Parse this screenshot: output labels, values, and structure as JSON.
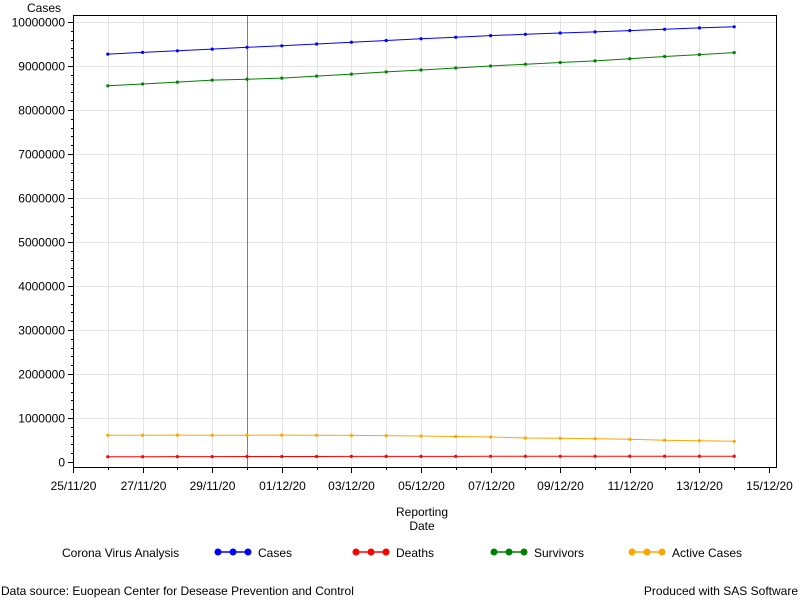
{
  "chart_data": {
    "type": "line",
    "x": [
      "26/11/20",
      "27/11/20",
      "28/11/20",
      "29/11/20",
      "30/11/20",
      "01/12/20",
      "02/12/20",
      "03/12/20",
      "04/12/20",
      "05/12/20",
      "06/12/20",
      "07/12/20",
      "08/12/20",
      "09/12/20",
      "10/12/20",
      "11/12/20",
      "12/12/20",
      "13/12/20",
      "14/12/20"
    ],
    "series": [
      {
        "name": "Cases",
        "color": "#0000ff",
        "values": [
          9270000,
          9310000,
          9345000,
          9385000,
          9425000,
          9460000,
          9500000,
          9540000,
          9580000,
          9620000,
          9655000,
          9690000,
          9720000,
          9750000,
          9775000,
          9805000,
          9835000,
          9865000,
          9890000
        ]
      },
      {
        "name": "Deaths",
        "color": "#ff0000",
        "values": [
          120000,
          121000,
          122000,
          123000,
          124000,
          125000,
          126000,
          127000,
          127000,
          128000,
          128000,
          129000,
          129000,
          130000,
          130000,
          131000,
          131000,
          132000,
          132000
        ]
      },
      {
        "name": "Survivors",
        "color": "#008000",
        "values": [
          8550000,
          8590000,
          8635000,
          8680000,
          8700000,
          8725000,
          8770000,
          8815000,
          8865000,
          8910000,
          8955000,
          9000000,
          9040000,
          9080000,
          9115000,
          9165000,
          9215000,
          9260000,
          9305000
        ]
      },
      {
        "name": "Active Cases",
        "color": "#ffa500",
        "values": [
          610000,
          610000,
          612000,
          610000,
          610000,
          612000,
          610000,
          605000,
          600000,
          590000,
          580000,
          568000,
          545000,
          540000,
          530000,
          515000,
          495000,
          485000,
          470000
        ]
      }
    ],
    "xlabel": [
      "Reporting",
      "Date"
    ],
    "ylabel": "Cases",
    "ylim": [
      0,
      10000000
    ],
    "yticks": [
      0,
      1000000,
      2000000,
      3000000,
      4000000,
      5000000,
      6000000,
      7000000,
      8000000,
      9000000,
      10000000
    ],
    "ytick_labels": [
      "0",
      "1000000",
      "2000000",
      "3000000",
      "4000000",
      "5000000",
      "6000000",
      "7000000",
      "8000000",
      "9000000",
      "10000000"
    ],
    "xlim": [
      "25/11/20",
      "15/12/20"
    ],
    "xtick_labels": [
      "25/11/20",
      "27/11/20",
      "29/11/20",
      "01/12/20",
      "03/12/20",
      "05/12/20",
      "07/12/20",
      "09/12/20",
      "11/12/20",
      "13/12/20",
      "15/12/20"
    ],
    "reference_line_x": "30/11/20",
    "grid": true,
    "legend_title": "Corona Virus Analysis",
    "legend_position": "bottom"
  },
  "footer": {
    "source": "Data source: Euopean Center for Desease Prevention and Control",
    "produced": "Produced with SAS Software"
  }
}
